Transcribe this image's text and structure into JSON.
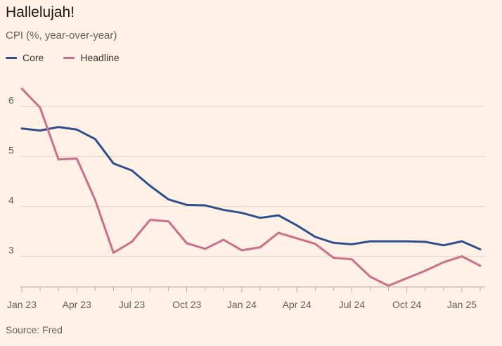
{
  "title": "Hallelujah!",
  "subtitle": "CPI (%, year-over-year)",
  "source": "Source: Fred",
  "colors": {
    "background": "#FFF1E5",
    "grid": "#E6D9CE",
    "axis": "#66605C",
    "core": "#2E4F8E",
    "headline": "#CC6E8A"
  },
  "legend": [
    {
      "label": "Core",
      "color": "#2E4F8E"
    },
    {
      "label": "Headline",
      "color": "#CC6E8A"
    }
  ],
  "chart_data": {
    "type": "line",
    "title": "Hallelujah!",
    "subtitle": "CPI (%, year-over-year)",
    "x": [
      "2023-01",
      "2023-02",
      "2023-03",
      "2023-04",
      "2023-05",
      "2023-06",
      "2023-07",
      "2023-08",
      "2023-09",
      "2023-10",
      "2023-11",
      "2023-12",
      "2024-01",
      "2024-02",
      "2024-03",
      "2024-04",
      "2024-05",
      "2024-06",
      "2024-07",
      "2024-08",
      "2024-09",
      "2024-10",
      "2024-11",
      "2024-12",
      "2025-01",
      "2025-02"
    ],
    "x_tick_labels": [
      "Jan 23",
      "Apr 23",
      "Jul 23",
      "Oct 23",
      "Jan 24",
      "Apr 24",
      "Jul 24",
      "Oct 24",
      "Jan 25"
    ],
    "x_tick_positions": [
      0,
      3,
      6,
      9,
      12,
      15,
      18,
      21,
      24
    ],
    "ylim": [
      2.4,
      6.6
    ],
    "y_ticks": [
      3,
      4,
      5,
      6
    ],
    "grid": "horizontal",
    "legend_position": "top-left",
    "series": [
      {
        "name": "Core",
        "color": "#2E4F8E",
        "values": [
          5.56,
          5.52,
          5.59,
          5.54,
          5.35,
          4.86,
          4.72,
          4.41,
          4.14,
          4.03,
          4.02,
          3.93,
          3.87,
          3.77,
          3.82,
          3.62,
          3.39,
          3.27,
          3.24,
          3.3,
          3.3,
          3.3,
          3.29,
          3.22,
          3.3,
          3.14
        ]
      },
      {
        "name": "Headline",
        "color": "#CC6E8A",
        "values": [
          6.36,
          5.98,
          4.94,
          4.96,
          4.13,
          3.07,
          3.29,
          3.73,
          3.7,
          3.26,
          3.15,
          3.33,
          3.12,
          3.18,
          3.47,
          3.36,
          3.25,
          2.97,
          2.94,
          2.59,
          2.41,
          2.56,
          2.71,
          2.88,
          3.0,
          2.81
        ]
      }
    ],
    "source": "Source: Fred"
  }
}
